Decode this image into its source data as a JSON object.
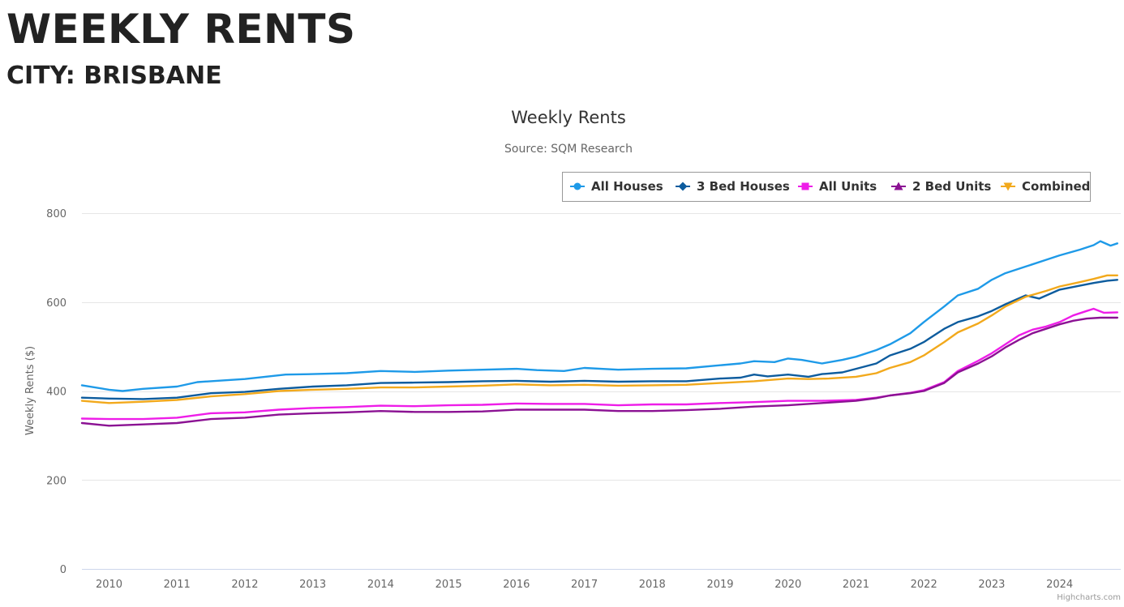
{
  "page": {
    "title": "WEEKLY RENTS",
    "subtitle": "CITY: BRISBANE"
  },
  "credits": "Highcharts.com",
  "colors": {
    "grid": "#e6e6e6",
    "axis_line": "#ccd6eb",
    "text": "#666666",
    "title": "#333333",
    "legend_border": "#999999"
  },
  "chart_data": {
    "type": "line",
    "title": "Weekly Rents",
    "subtitle": "Source: SQM Research",
    "ylabel": "Weekly Rents ($)",
    "xlabel": "",
    "ylim": [
      0,
      800
    ],
    "yticks": [
      0,
      200,
      400,
      600,
      800
    ],
    "xlim": [
      2009.6,
      2024.9
    ],
    "xticks": [
      2010,
      2011,
      2012,
      2013,
      2014,
      2015,
      2016,
      2017,
      2018,
      2019,
      2020,
      2021,
      2022,
      2023,
      2024
    ],
    "grid": true,
    "legend_position": "top-right",
    "series": [
      {
        "name": "All Houses",
        "color": "#1e9ae8",
        "marker": "circle",
        "points": [
          [
            2009.6,
            413
          ],
          [
            2010,
            403
          ],
          [
            2010.2,
            400
          ],
          [
            2010.5,
            405
          ],
          [
            2011,
            410
          ],
          [
            2011.3,
            420
          ],
          [
            2011.7,
            424
          ],
          [
            2012,
            427
          ],
          [
            2012.3,
            432
          ],
          [
            2012.6,
            437
          ],
          [
            2013,
            438
          ],
          [
            2013.5,
            440
          ],
          [
            2014,
            445
          ],
          [
            2014.5,
            443
          ],
          [
            2015,
            446
          ],
          [
            2015.5,
            448
          ],
          [
            2016,
            450
          ],
          [
            2016.3,
            447
          ],
          [
            2016.7,
            445
          ],
          [
            2017,
            452
          ],
          [
            2017.5,
            448
          ],
          [
            2018,
            450
          ],
          [
            2018.5,
            451
          ],
          [
            2019,
            458
          ],
          [
            2019.3,
            462
          ],
          [
            2019.5,
            467
          ],
          [
            2019.8,
            465
          ],
          [
            2020,
            473
          ],
          [
            2020.2,
            470
          ],
          [
            2020.5,
            462
          ],
          [
            2020.8,
            470
          ],
          [
            2021,
            477
          ],
          [
            2021.3,
            492
          ],
          [
            2021.5,
            505
          ],
          [
            2021.8,
            530
          ],
          [
            2022,
            555
          ],
          [
            2022.3,
            590
          ],
          [
            2022.5,
            615
          ],
          [
            2022.8,
            630
          ],
          [
            2023,
            650
          ],
          [
            2023.2,
            665
          ],
          [
            2023.5,
            680
          ],
          [
            2023.8,
            695
          ],
          [
            2024,
            705
          ],
          [
            2024.3,
            718
          ],
          [
            2024.5,
            728
          ],
          [
            2024.6,
            737
          ],
          [
            2024.75,
            727
          ],
          [
            2024.85,
            732
          ]
        ]
      },
      {
        "name": "3 Bed Houses",
        "color": "#0d5c9e",
        "marker": "diamond",
        "points": [
          [
            2009.6,
            385
          ],
          [
            2010,
            383
          ],
          [
            2010.5,
            382
          ],
          [
            2011,
            385
          ],
          [
            2011.5,
            395
          ],
          [
            2012,
            398
          ],
          [
            2012.5,
            405
          ],
          [
            2013,
            410
          ],
          [
            2013.5,
            413
          ],
          [
            2014,
            418
          ],
          [
            2014.5,
            419
          ],
          [
            2015,
            420
          ],
          [
            2015.5,
            422
          ],
          [
            2016,
            423
          ],
          [
            2016.5,
            421
          ],
          [
            2017,
            423
          ],
          [
            2017.5,
            421
          ],
          [
            2018,
            422
          ],
          [
            2018.5,
            422
          ],
          [
            2019,
            428
          ],
          [
            2019.3,
            430
          ],
          [
            2019.5,
            437
          ],
          [
            2019.7,
            433
          ],
          [
            2020,
            437
          ],
          [
            2020.3,
            432
          ],
          [
            2020.5,
            438
          ],
          [
            2020.8,
            442
          ],
          [
            2021,
            450
          ],
          [
            2021.3,
            462
          ],
          [
            2021.5,
            480
          ],
          [
            2021.8,
            495
          ],
          [
            2022,
            510
          ],
          [
            2022.3,
            540
          ],
          [
            2022.5,
            555
          ],
          [
            2022.8,
            568
          ],
          [
            2023,
            580
          ],
          [
            2023.2,
            595
          ],
          [
            2023.5,
            615
          ],
          [
            2023.7,
            608
          ],
          [
            2024,
            628
          ],
          [
            2024.3,
            637
          ],
          [
            2024.5,
            643
          ],
          [
            2024.7,
            648
          ],
          [
            2024.85,
            650
          ]
        ]
      },
      {
        "name": "All Units",
        "color": "#ee1de8",
        "marker": "square",
        "points": [
          [
            2009.6,
            338
          ],
          [
            2010,
            337
          ],
          [
            2010.5,
            337
          ],
          [
            2011,
            340
          ],
          [
            2011.5,
            350
          ],
          [
            2012,
            352
          ],
          [
            2012.5,
            358
          ],
          [
            2013,
            362
          ],
          [
            2013.5,
            364
          ],
          [
            2014,
            367
          ],
          [
            2014.5,
            366
          ],
          [
            2015,
            368
          ],
          [
            2015.5,
            369
          ],
          [
            2016,
            372
          ],
          [
            2016.5,
            371
          ],
          [
            2017,
            371
          ],
          [
            2017.5,
            368
          ],
          [
            2018,
            370
          ],
          [
            2018.5,
            370
          ],
          [
            2019,
            373
          ],
          [
            2019.5,
            375
          ],
          [
            2020,
            378
          ],
          [
            2020.5,
            378
          ],
          [
            2021,
            380
          ],
          [
            2021.3,
            385
          ],
          [
            2021.5,
            390
          ],
          [
            2021.8,
            396
          ],
          [
            2022,
            402
          ],
          [
            2022.3,
            420
          ],
          [
            2022.5,
            445
          ],
          [
            2022.8,
            468
          ],
          [
            2023,
            485
          ],
          [
            2023.2,
            505
          ],
          [
            2023.4,
            525
          ],
          [
            2023.6,
            538
          ],
          [
            2023.8,
            545
          ],
          [
            2024,
            555
          ],
          [
            2024.2,
            570
          ],
          [
            2024.4,
            580
          ],
          [
            2024.5,
            585
          ],
          [
            2024.65,
            576
          ],
          [
            2024.85,
            577
          ]
        ]
      },
      {
        "name": "2 Bed Units",
        "color": "#8b1293",
        "marker": "triangle",
        "points": [
          [
            2009.6,
            328
          ],
          [
            2010,
            322
          ],
          [
            2010.5,
            325
          ],
          [
            2011,
            328
          ],
          [
            2011.5,
            337
          ],
          [
            2012,
            340
          ],
          [
            2012.5,
            347
          ],
          [
            2013,
            350
          ],
          [
            2013.5,
            352
          ],
          [
            2014,
            355
          ],
          [
            2014.5,
            353
          ],
          [
            2015,
            353
          ],
          [
            2015.5,
            354
          ],
          [
            2016,
            358
          ],
          [
            2016.5,
            358
          ],
          [
            2017,
            358
          ],
          [
            2017.5,
            355
          ],
          [
            2018,
            355
          ],
          [
            2018.5,
            357
          ],
          [
            2019,
            360
          ],
          [
            2019.5,
            365
          ],
          [
            2020,
            368
          ],
          [
            2020.5,
            373
          ],
          [
            2021,
            378
          ],
          [
            2021.3,
            384
          ],
          [
            2021.5,
            390
          ],
          [
            2021.8,
            395
          ],
          [
            2022,
            400
          ],
          [
            2022.3,
            418
          ],
          [
            2022.5,
            442
          ],
          [
            2022.8,
            462
          ],
          [
            2023,
            478
          ],
          [
            2023.2,
            498
          ],
          [
            2023.4,
            515
          ],
          [
            2023.6,
            530
          ],
          [
            2023.8,
            540
          ],
          [
            2024,
            550
          ],
          [
            2024.2,
            558
          ],
          [
            2024.4,
            563
          ],
          [
            2024.6,
            565
          ],
          [
            2024.85,
            565
          ]
        ]
      },
      {
        "name": "Combined",
        "color": "#f2a91c",
        "marker": "triangle-down",
        "points": [
          [
            2009.6,
            378
          ],
          [
            2010,
            373
          ],
          [
            2010.5,
            376
          ],
          [
            2011,
            380
          ],
          [
            2011.5,
            388
          ],
          [
            2012,
            393
          ],
          [
            2012.5,
            400
          ],
          [
            2013,
            403
          ],
          [
            2013.5,
            405
          ],
          [
            2014,
            408
          ],
          [
            2014.5,
            408
          ],
          [
            2015,
            410
          ],
          [
            2015.5,
            412
          ],
          [
            2016,
            415
          ],
          [
            2016.5,
            413
          ],
          [
            2017,
            414
          ],
          [
            2017.5,
            412
          ],
          [
            2018,
            413
          ],
          [
            2018.5,
            414
          ],
          [
            2019,
            418
          ],
          [
            2019.5,
            422
          ],
          [
            2020,
            428
          ],
          [
            2020.3,
            427
          ],
          [
            2020.6,
            428
          ],
          [
            2021,
            432
          ],
          [
            2021.3,
            440
          ],
          [
            2021.5,
            452
          ],
          [
            2021.8,
            465
          ],
          [
            2022,
            480
          ],
          [
            2022.3,
            510
          ],
          [
            2022.5,
            532
          ],
          [
            2022.8,
            552
          ],
          [
            2023,
            570
          ],
          [
            2023.2,
            590
          ],
          [
            2023.5,
            612
          ],
          [
            2023.8,
            625
          ],
          [
            2024,
            635
          ],
          [
            2024.3,
            645
          ],
          [
            2024.5,
            652
          ],
          [
            2024.7,
            660
          ],
          [
            2024.85,
            660
          ]
        ]
      }
    ]
  }
}
